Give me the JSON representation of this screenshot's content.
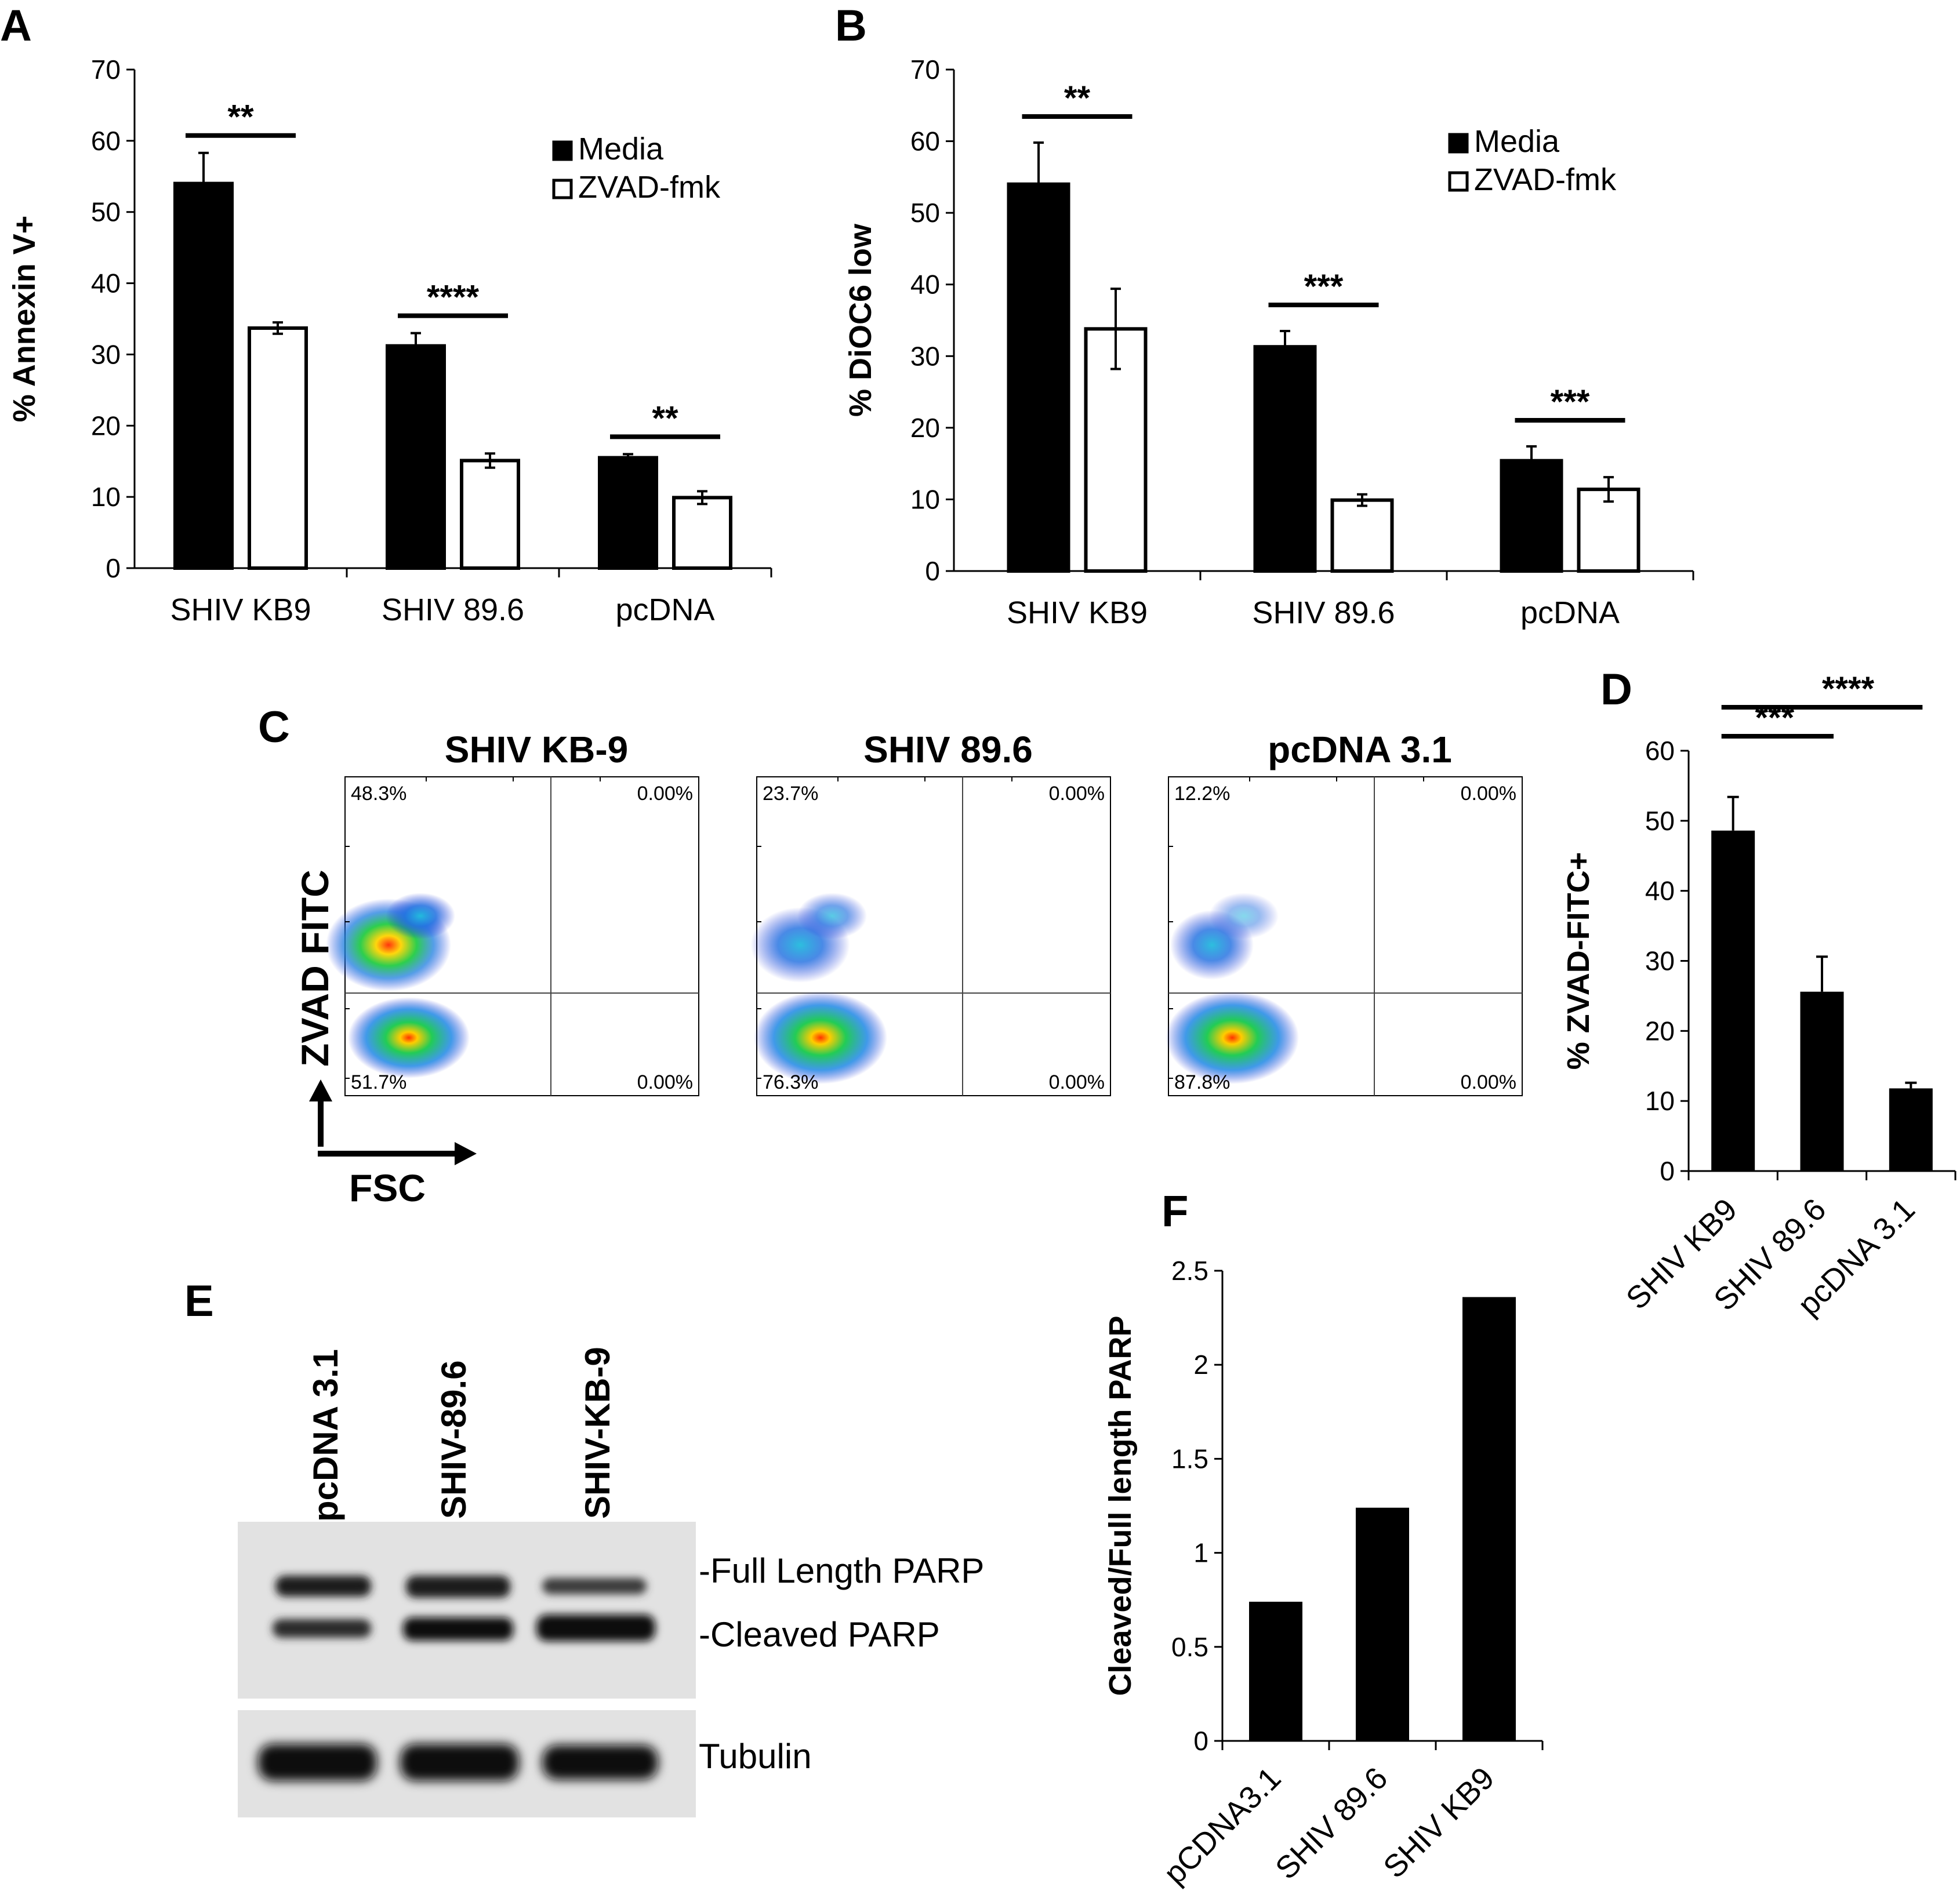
{
  "panel_letters": [
    "A",
    "B",
    "C",
    "D",
    "E",
    "F"
  ],
  "chart_data": [
    {
      "id": "A",
      "type": "bar",
      "categories": [
        "SHIV KB9",
        "SHIV 89.6",
        "pcDNA"
      ],
      "series": [
        {
          "name": "Media",
          "values": [
            54,
            31.2,
            15.5
          ],
          "errors": [
            4.3,
            1.8,
            0.5
          ],
          "color": "#000000"
        },
        {
          "name": "ZVAD-fmk",
          "values": [
            33.7,
            15.1,
            9.9
          ],
          "errors": [
            0.8,
            1.0,
            0.9
          ],
          "color": "#ffffff"
        }
      ],
      "ylabel": "% Annexin V+",
      "xlabel": "",
      "ylim": [
        0,
        70
      ],
      "yticks": [
        0,
        10,
        20,
        30,
        40,
        50,
        60,
        70
      ],
      "significance": [
        "**",
        "****",
        "**"
      ],
      "legend_position": "top-right"
    },
    {
      "id": "B",
      "type": "bar",
      "categories": [
        "SHIV KB9",
        "SHIV 89.6",
        "pcDNA"
      ],
      "series": [
        {
          "name": "Media",
          "values": [
            54,
            31.3,
            15.4
          ],
          "errors": [
            5.8,
            2.2,
            2.0
          ],
          "color": "#000000"
        },
        {
          "name": "ZVAD-fmk",
          "values": [
            33.8,
            9.9,
            11.4
          ],
          "errors": [
            5.6,
            0.8,
            1.7
          ],
          "color": "#ffffff"
        }
      ],
      "ylabel": "% DiOC6 low",
      "xlabel": "",
      "ylim": [
        0,
        70
      ],
      "yticks": [
        0,
        10,
        20,
        30,
        40,
        50,
        60,
        70
      ],
      "significance": [
        "**",
        "***",
        "***"
      ],
      "legend_position": "top-right"
    },
    {
      "id": "D",
      "type": "bar",
      "categories": [
        "SHIV KB9",
        "SHIV 89.6",
        "pcDNA 3.1"
      ],
      "series": [
        {
          "values": [
            48.6,
            25.6,
            11.8
          ],
          "errors": [
            4.8,
            5.0,
            0.8
          ],
          "color": "#000000"
        }
      ],
      "ylabel": "% ZVAD-FITC+",
      "xlabel": "",
      "ylim": [
        0,
        60
      ],
      "yticks": [
        0,
        10,
        20,
        30,
        40,
        50,
        60
      ],
      "significance": [
        "****",
        "***"
      ]
    },
    {
      "id": "F",
      "type": "bar",
      "categories": [
        "pCDNA3.1",
        "SHIV 89.6",
        "SHIV KB9"
      ],
      "series": [
        {
          "values": [
            0.74,
            1.24,
            2.36
          ],
          "color": "#000000"
        }
      ],
      "ylabel": "Cleaved/Full length PARP",
      "xlabel": "",
      "ylim": [
        0,
        2.5
      ],
      "yticks": [
        "0",
        "0.5",
        "1",
        "1.5",
        "2",
        "2.5"
      ]
    }
  ],
  "flow": {
    "panels": [
      {
        "title": "SHIV KB-9",
        "ul": "48.3%",
        "ur": "0.00%",
        "ll": "51.7%",
        "lr": "0.00%"
      },
      {
        "title": "SHIV 89.6",
        "ul": "23.7%",
        "ur": "0.00%",
        "ll": "76.3%",
        "lr": "0.00%"
      },
      {
        "title": "pcDNA 3.1",
        "ul": "12.2%",
        "ur": "0.00%",
        "ll": "87.8%",
        "lr": "0.00%"
      }
    ],
    "y_axis": "ZVAD  FITC",
    "x_axis": "FSC"
  },
  "blot": {
    "lanes": [
      "pcDNA 3.1",
      "SHIV-89.6",
      "SHIV-KB-9"
    ],
    "bands": [
      "-Full Length PARP",
      "-Cleaved PARP"
    ],
    "loading_control": "Tubulin"
  },
  "colors": {
    "bar_fill": "#000000",
    "bar_open": "#ffffff",
    "axis": "#000000"
  }
}
